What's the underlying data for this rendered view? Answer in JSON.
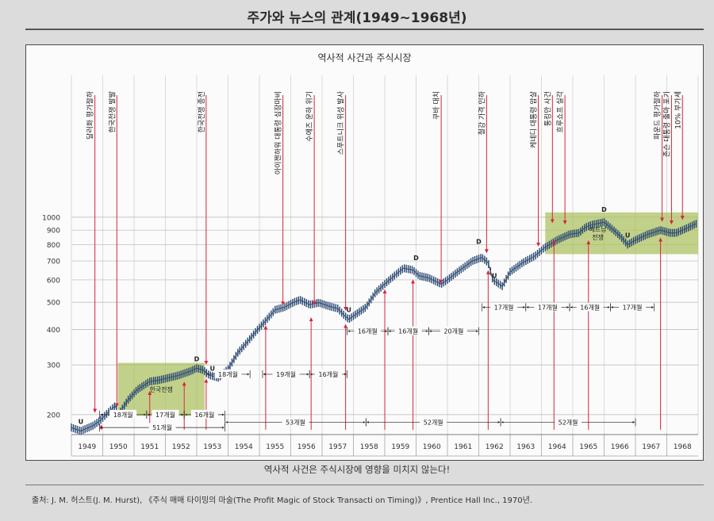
{
  "page": {
    "title": "주가와 뉴스의 관계(1949~1968년)",
    "caption": "역사적 사건은 주식시장에 영향을 미치지 않는다!",
    "source": "출처: J. M. 허스트(J. M. Hurst), 《주식 매매 타이밍의 마술(The Profit Magic of Stock Transacti on Timing)》, Prentice Hall Inc., 1970년."
  },
  "chart_data": {
    "type": "line",
    "title": "역사적 사건과 주식시장",
    "scale": "log",
    "ylim": [
      170,
      1080
    ],
    "y_ticks": [
      200,
      300,
      400,
      500,
      600,
      700,
      800,
      900,
      1000
    ],
    "years": [
      "1949",
      "1950",
      "1951",
      "1952",
      "1953",
      "1954",
      "1955",
      "1956",
      "1957",
      "1958",
      "1959",
      "1960",
      "1961",
      "1962",
      "1963",
      "1964",
      "1965",
      "1966",
      "1967",
      "1968"
    ],
    "grid": true,
    "series": [
      {
        "x": [
          1949.0,
          1949.3,
          1949.45,
          1949.7,
          1949.9,
          1950.2,
          1950.4,
          1950.5,
          1950.8,
          1951.1,
          1951.5,
          1951.8,
          1952.1,
          1952.4,
          1952.8,
          1953.0,
          1953.2,
          1953.4,
          1953.7,
          1954.0,
          1954.3,
          1954.6,
          1954.9,
          1955.2,
          1955.5,
          1955.8,
          1956.1,
          1956.3,
          1956.6,
          1956.9,
          1957.2,
          1957.5,
          1957.7,
          1957.85,
          1958.1,
          1958.4,
          1958.7,
          1959.0,
          1959.3,
          1959.6,
          1959.9,
          1960.1,
          1960.4,
          1960.8,
          1961.0,
          1961.4,
          1961.8,
          1962.1,
          1962.3,
          1962.45,
          1962.75,
          1963.0,
          1963.4,
          1963.8,
          1964.1,
          1964.5,
          1964.9,
          1965.2,
          1965.4,
          1965.6,
          1966.0,
          1966.3,
          1966.5,
          1966.75,
          1967.0,
          1967.4,
          1967.8,
          1968.1,
          1968.3,
          1968.6,
          1968.95
        ],
        "y": [
          180,
          175,
          178,
          183,
          190,
          205,
          215,
          200,
          225,
          245,
          262,
          265,
          270,
          275,
          285,
          292,
          288,
          276,
          270,
          290,
          330,
          360,
          395,
          430,
          470,
          480,
          500,
          510,
          490,
          498,
          485,
          475,
          450,
          435,
          455,
          480,
          540,
          580,
          620,
          660,
          650,
          620,
          610,
          580,
          600,
          650,
          700,
          720,
          690,
          600,
          570,
          640,
          690,
          730,
          780,
          830,
          870,
          880,
          920,
          940,
          960,
          900,
          860,
          800,
          830,
          870,
          900,
          880,
          880,
          910,
          950
        ]
      }
    ],
    "extremes": [
      {
        "label": "U",
        "x": 1949.3,
        "y": 175
      },
      {
        "label": "D",
        "x": 1953.0,
        "y": 292
      },
      {
        "label": "U",
        "x": 1953.5,
        "y": 270
      },
      {
        "label": "U",
        "x": 1957.85,
        "y": 435
      },
      {
        "label": "D",
        "x": 1960.0,
        "y": 665
      },
      {
        "label": "D",
        "x": 1962.0,
        "y": 760
      },
      {
        "label": "U",
        "x": 1962.5,
        "y": 575
      },
      {
        "label": "D",
        "x": 1966.0,
        "y": 985
      },
      {
        "label": "U",
        "x": 1966.75,
        "y": 800
      }
    ],
    "events": [
      {
        "label": "달러화 평가절하",
        "x": 1949.75,
        "y": 196
      },
      {
        "label": "한국전쟁 발발",
        "x": 1950.45,
        "y": 205
      },
      {
        "label": "한국전쟁 종전",
        "x": 1953.3,
        "y": 290
      },
      {
        "label": "아이젠하워 대통령 심장마비",
        "x": 1955.75,
        "y": 470
      },
      {
        "label": "수에즈 운하 위기",
        "x": 1956.75,
        "y": 470
      },
      {
        "label": "스푸트니크 위성 발사",
        "x": 1957.75,
        "y": 450
      },
      {
        "label": "쿠바 대치",
        "x": 1960.8,
        "y": 560
      },
      {
        "label": "철강 가격 인하",
        "x": 1962.25,
        "y": 720
      },
      {
        "label": "케네디 대통령 암살",
        "x": 1963.9,
        "y": 760
      },
      {
        "label": "통킹만 사건",
        "x": 1964.35,
        "y": 920
      },
      {
        "label": "흐루쇼프 실각",
        "x": 1964.75,
        "y": 910
      },
      {
        "label": "파운드 평가절하",
        "x": 1967.85,
        "y": 930
      },
      {
        "label": "존슨 대통령 출마 포기",
        "x": 1968.15,
        "y": 910
      },
      {
        "label": "10% 부가세",
        "x": 1968.5,
        "y": 945
      }
    ],
    "shaded_periods": [
      {
        "label": "한국전쟁",
        "x0": 1950.48,
        "x1": 1953.25,
        "y0": 198,
        "y1": 305
      },
      {
        "label": "베트남 전쟁",
        "x0": 1964.12,
        "x1": 1969.0,
        "y0": 740,
        "y1": 1040
      }
    ],
    "upward_arrows": [
      {
        "x": 1949.95,
        "y": 196
      },
      {
        "x": 1951.5,
        "y": 258
      },
      {
        "x": 1952.6,
        "y": 278
      },
      {
        "x": 1953.3,
        "y": 285
      },
      {
        "x": 1955.2,
        "y": 440
      },
      {
        "x": 1956.65,
        "y": 470
      },
      {
        "x": 1957.75,
        "y": 445
      },
      {
        "x": 1959.0,
        "y": 590
      },
      {
        "x": 1959.9,
        "y": 640
      },
      {
        "x": 1962.3,
        "y": 690
      },
      {
        "x": 1964.4,
        "y": 880
      },
      {
        "x": 1965.5,
        "y": 880
      },
      {
        "x": 1967.8,
        "y": 900
      }
    ],
    "intervals": [
      {
        "label": "18개월",
        "x0": 1949.9,
        "x1": 1951.4,
        "y": 200,
        "row": 1
      },
      {
        "label": "17개월",
        "x0": 1951.4,
        "x1": 1952.6,
        "y": 200,
        "row": 1
      },
      {
        "label": "16개월",
        "x0": 1952.6,
        "x1": 1953.9,
        "y": 200,
        "row": 1
      },
      {
        "label": "51개월",
        "x0": 1949.9,
        "x1": 1953.9,
        "y": 180,
        "row": 2
      },
      {
        "label": "18개월",
        "x0": 1953.3,
        "x1": 1954.7,
        "y": 278,
        "row": 0
      },
      {
        "label": "19개월",
        "x0": 1955.1,
        "x1": 1956.6,
        "y": 278,
        "row": 0
      },
      {
        "label": "16개월",
        "x0": 1956.6,
        "x1": 1957.8,
        "y": 278,
        "row": 0
      },
      {
        "label": "53개월",
        "x0": 1953.9,
        "x1": 1958.4,
        "y": 188,
        "row": 1
      },
      {
        "label": "16개월",
        "x0": 1957.8,
        "x1": 1959.1,
        "y": 395,
        "row": 0
      },
      {
        "label": "16개월",
        "x0": 1959.1,
        "x1": 1960.4,
        "y": 395,
        "row": 0
      },
      {
        "label": "20개월",
        "x0": 1960.4,
        "x1": 1962.0,
        "y": 395,
        "row": 0
      },
      {
        "label": "52개월",
        "x0": 1958.4,
        "x1": 1962.7,
        "y": 188,
        "row": 1
      },
      {
        "label": "17개월",
        "x0": 1962.1,
        "x1": 1963.5,
        "y": 480,
        "row": 0
      },
      {
        "label": "17개월",
        "x0": 1963.5,
        "x1": 1964.9,
        "y": 480,
        "row": 0
      },
      {
        "label": "16개월",
        "x0": 1964.9,
        "x1": 1966.2,
        "y": 480,
        "row": 0
      },
      {
        "label": "17개월",
        "x0": 1966.2,
        "x1": 1967.6,
        "y": 480,
        "row": 0
      },
      {
        "label": "52개월",
        "x0": 1962.7,
        "x1": 1967.0,
        "y": 188,
        "row": 1
      }
    ]
  }
}
